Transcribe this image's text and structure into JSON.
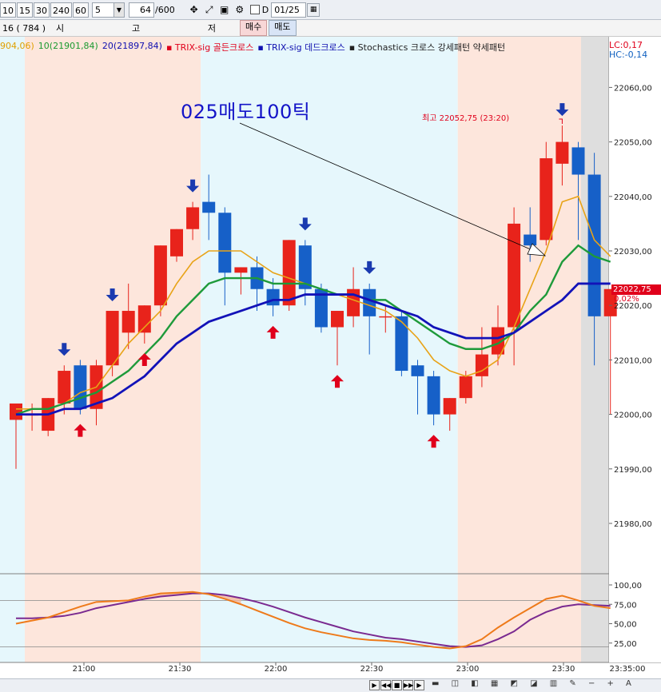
{
  "toolbar": {
    "periods": [
      "10",
      "15",
      "30",
      "240",
      "60"
    ],
    "interval_value": "5",
    "count_input": "64",
    "count_total": "/600",
    "d_label": "D",
    "date_value": "01/25"
  },
  "row2": {
    "code": "16 (   784   )",
    "field_labels": [
      "시",
      "고",
      "저"
    ],
    "buy_label": "매수",
    "sell_label": "매도"
  },
  "legend": [
    {
      "text": "904,06)",
      "color": "#e0a000"
    },
    {
      "text": "10(21901,84)",
      "color": "#1a9a30"
    },
    {
      "text": "20(21897,84)",
      "color": "#1010b0"
    },
    {
      "text": "▪ TRIX-sig 골든크로스",
      "color": "#e0001b"
    },
    {
      "text": "▪ TRIX-sig 데드크로스",
      "color": "#1010b0"
    },
    {
      "text": "▪ Stochastics 크로스 강세패턴  약세패턴",
      "color": "#222222"
    }
  ],
  "lc_label": "LC:0,17",
  "hc_label": "HC:-0,14",
  "annotation": "025매도100틱",
  "high_label": "최고 22052,75 (23:20)",
  "current_price": "22022,75",
  "current_pct": "0,02%",
  "colors": {
    "up": "#e8231b",
    "down": "#1660c8",
    "ma5": "#e8a317",
    "ma10": "#1e9a3a",
    "ma20": "#1212b8",
    "stoch_k": "#ee7a1a",
    "stoch_d": "#7a2a90",
    "zone_pink": "#fde6dc",
    "zone_cyan": "#e6f7fc"
  },
  "chart_data": {
    "type": "candlestick",
    "y_axis_labels": [
      "22060,00",
      "22050,00",
      "22040,00",
      "22030,00",
      "22020,00",
      "22010,00",
      "22000,00",
      "21990,00",
      "21980,00"
    ],
    "y_axis_values": [
      22060,
      22050,
      22040,
      22030,
      22020,
      22010,
      22000,
      21990,
      21980
    ],
    "ylim": [
      21972,
      22070
    ],
    "x_axis_labels": [
      "21:00",
      "21:30",
      "22:00",
      "22:30",
      "23:00",
      "23:30",
      "23:35:00"
    ],
    "candles": [
      {
        "o": 21999,
        "h": 22002,
        "l": 21990,
        "c": 22002
      },
      {
        "o": 22000,
        "h": 22002,
        "l": 21997,
        "c": 22000
      },
      {
        "o": 21997,
        "h": 22003,
        "l": 21996,
        "c": 22003
      },
      {
        "o": 22002,
        "h": 22009,
        "l": 22000,
        "c": 22008
      },
      {
        "o": 22009,
        "h": 22010,
        "l": 22000,
        "c": 22001
      },
      {
        "o": 22001,
        "h": 22010,
        "l": 21998,
        "c": 22009
      },
      {
        "o": 22009,
        "h": 22019,
        "l": 22007,
        "c": 22019
      },
      {
        "o": 22015,
        "h": 22024,
        "l": 22012,
        "c": 22019
      },
      {
        "o": 22015,
        "h": 22020,
        "l": 22013,
        "c": 22020
      },
      {
        "o": 22020,
        "h": 22031,
        "l": 22018,
        "c": 22031
      },
      {
        "o": 22029,
        "h": 22034,
        "l": 22028,
        "c": 22034
      },
      {
        "o": 22034,
        "h": 22039,
        "l": 22032,
        "c": 22038
      },
      {
        "o": 22039,
        "h": 22044,
        "l": 22032,
        "c": 22037
      },
      {
        "o": 22037,
        "h": 22038,
        "l": 22020,
        "c": 22026
      },
      {
        "o": 22026,
        "h": 22027,
        "l": 22022,
        "c": 22027
      },
      {
        "o": 22027,
        "h": 22029,
        "l": 22019,
        "c": 22023
      },
      {
        "o": 22023,
        "h": 22025,
        "l": 22018,
        "c": 22020
      },
      {
        "o": 22020,
        "h": 22032,
        "l": 22019,
        "c": 22032
      },
      {
        "o": 22031,
        "h": 22032,
        "l": 22020,
        "c": 22023
      },
      {
        "o": 22023,
        "h": 22024,
        "l": 22015,
        "c": 22016
      },
      {
        "o": 22016,
        "h": 22019,
        "l": 22009,
        "c": 22019
      },
      {
        "o": 22018,
        "h": 22027,
        "l": 22016,
        "c": 22023
      },
      {
        "o": 22023,
        "h": 22024,
        "l": 22011,
        "c": 22018
      },
      {
        "o": 22018,
        "h": 22020,
        "l": 22015,
        "c": 22018
      },
      {
        "o": 22018,
        "h": 22019,
        "l": 22007,
        "c": 22008
      },
      {
        "o": 22009,
        "h": 22010,
        "l": 22000,
        "c": 22007
      },
      {
        "o": 22007,
        "h": 22008,
        "l": 21998,
        "c": 22000
      },
      {
        "o": 22000,
        "h": 22003,
        "l": 21997,
        "c": 22003
      },
      {
        "o": 22003,
        "h": 22008,
        "l": 22002,
        "c": 22007
      },
      {
        "o": 22007,
        "h": 22016,
        "l": 22005,
        "c": 22011
      },
      {
        "o": 22011,
        "h": 22020,
        "l": 22009,
        "c": 22016
      },
      {
        "o": 22016,
        "h": 22038,
        "l": 22009,
        "c": 22035
      },
      {
        "o": 22033,
        "h": 22038,
        "l": 22028,
        "c": 22031
      },
      {
        "o": 22032,
        "h": 22050,
        "l": 22031,
        "c": 22047
      },
      {
        "o": 22046,
        "h": 22053,
        "l": 22042,
        "c": 22050
      },
      {
        "o": 22049,
        "h": 22050,
        "l": 22032,
        "c": 22044
      },
      {
        "o": 22044,
        "h": 22048,
        "l": 22009,
        "c": 22018
      },
      {
        "o": 22018,
        "h": 22023,
        "l": 22000,
        "c": 22023
      }
    ],
    "ma5": [
      22001,
      22001,
      22001,
      22002,
      22004,
      22005,
      22009,
      22013,
      22016,
      22019,
      22024,
      22028,
      22030,
      22030,
      22030,
      22028,
      22026,
      22025,
      22024,
      22023,
      22022,
      22021,
      22020,
      22019,
      22017,
      22014,
      22010,
      22008,
      22007,
      22008,
      22010,
      22016,
      22023,
      22030,
      22039,
      22040,
      22032,
      22029
    ],
    "ma10": [
      22000,
      22001,
      22001,
      22002,
      22003,
      22004,
      22006,
      22008,
      22011,
      22014,
      22018,
      22021,
      22024,
      22025,
      22025,
      22025,
      22024,
      22024,
      22024,
      22023,
      22022,
      22022,
      22021,
      22021,
      22019,
      22017,
      22015,
      22013,
      22012,
      22012,
      22013,
      22015,
      22019,
      22022,
      22028,
      22031,
      22029,
      22028
    ],
    "ma20": [
      22000,
      22000,
      22000,
      22001,
      22001,
      22002,
      22003,
      22005,
      22007,
      22010,
      22013,
      22015,
      22017,
      22018,
      22019,
      22020,
      22021,
      22021,
      22022,
      22022,
      22022,
      22022,
      22021,
      22020,
      22019,
      22018,
      22016,
      22015,
      22014,
      22014,
      22014,
      22015,
      22017,
      22019,
      22021,
      22024,
      22024,
      22024
    ],
    "buy_arrows": [
      4,
      8,
      16,
      20,
      26
    ],
    "sell_arrows": [
      3,
      6,
      11,
      18,
      22,
      34
    ],
    "zones": [
      {
        "from": -1.5,
        "to": 11,
        "type": "pink"
      },
      {
        "from": 11,
        "to": 27,
        "type": "cyan"
      },
      {
        "from": 27,
        "to": 35.6,
        "type": "pink"
      },
      {
        "from": 35.6,
        "to": 37.5,
        "type": "cyan"
      }
    ],
    "stochastics": {
      "y_axis_labels": [
        "100,00",
        "75,00",
        "50,00",
        "25,00"
      ],
      "y_axis_values": [
        100,
        75,
        50,
        25
      ],
      "ylim": [
        0,
        110
      ],
      "k": [
        50,
        54,
        58,
        65,
        72,
        78,
        79,
        80,
        85,
        89,
        90,
        91,
        88,
        82,
        75,
        67,
        59,
        51,
        44,
        39,
        35,
        31,
        29,
        28,
        26,
        23,
        20,
        18,
        21,
        30,
        45,
        58,
        70,
        82,
        86,
        80,
        73,
        70
      ],
      "d": [
        57,
        57,
        58,
        60,
        64,
        70,
        74,
        78,
        82,
        85,
        87,
        89,
        89,
        87,
        83,
        78,
        72,
        65,
        58,
        52,
        46,
        40,
        36,
        32,
        30,
        27,
        24,
        21,
        20,
        22,
        30,
        40,
        55,
        65,
        72,
        75,
        74,
        73
      ]
    }
  }
}
